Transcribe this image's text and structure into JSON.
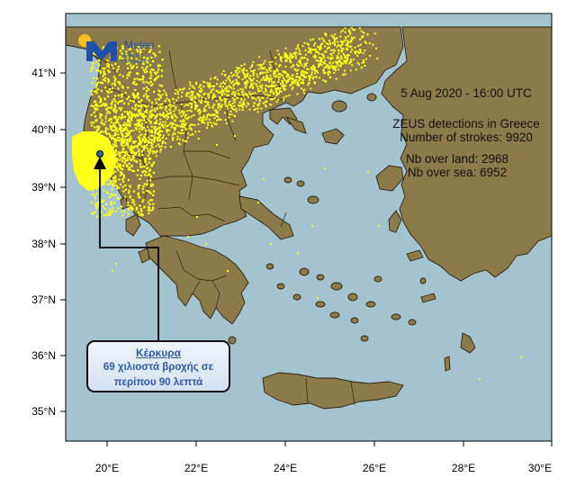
{
  "logo": {
    "brand": "Meteo",
    "tagline_line1": "Όλα για",
    "tagline_line2": "τον καιρό",
    "brand_color": "#1f4fa8",
    "sun_color": "#f6c21a"
  },
  "info": {
    "date_line": "5  Aug 2020 - 16:00 UTC",
    "title_line": "ZEUS detections in Greece",
    "strokes_line": "Number of strokes: 9920",
    "land_line": "Nb over land: 2968",
    "sea_line": "Nb over sea: 6952"
  },
  "callout": {
    "place": "Κέρκυρα",
    "line1": "69 χιλιοστά βροχής σε",
    "line2": "περίπου 90 λεπτά"
  },
  "map": {
    "sea_color": "#a3c4ce",
    "land_color": "#8c7b4a",
    "border_color": "#2c2212",
    "lightning_color": "#ffff1a",
    "lat_ticks": [
      "41°N",
      "40°N",
      "39°N",
      "38°N",
      "37°N",
      "36°N",
      "35°N"
    ],
    "lon_ticks": [
      "20°E",
      "22°E",
      "24°E",
      "26°E",
      "28°E",
      "30°E"
    ],
    "marker": "Corfu station"
  }
}
